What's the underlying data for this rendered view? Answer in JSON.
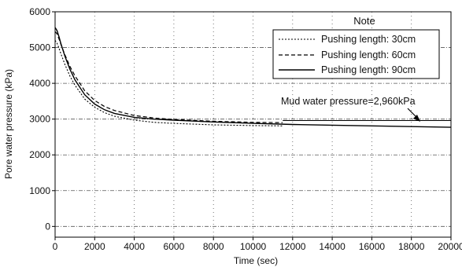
{
  "chart_data": {
    "type": "line",
    "xlabel": "Time (sec)",
    "ylabel": "Pore water pressure (kPa)",
    "xlim": [
      0,
      20000
    ],
    "ylim": [
      -300,
      6000
    ],
    "xticks": [
      0,
      2000,
      4000,
      6000,
      8000,
      10000,
      12000,
      14000,
      16000,
      18000,
      20000
    ],
    "yticks": [
      0,
      1000,
      2000,
      3000,
      4000,
      5000,
      6000
    ],
    "legend": {
      "title": "Note",
      "placement": "top-right"
    },
    "series": [
      {
        "name": "Pushing length: 30cm",
        "style": "dotted",
        "x": [
          0,
          100,
          200,
          300,
          500,
          750,
          1000,
          1500,
          2000,
          2500,
          3000,
          4000,
          5000,
          6000,
          8000,
          10000,
          11500
        ],
        "y": [
          5200,
          5120,
          4980,
          4820,
          4520,
          4200,
          3950,
          3560,
          3330,
          3180,
          3080,
          2970,
          2910,
          2880,
          2840,
          2820,
          2810
        ]
      },
      {
        "name": "Pushing length: 60cm",
        "style": "dashed",
        "x": [
          0,
          100,
          200,
          300,
          500,
          750,
          1000,
          1500,
          2000,
          2500,
          3000,
          4000,
          5000,
          6000,
          8000,
          10000,
          11500
        ],
        "y": [
          5450,
          5380,
          5240,
          5080,
          4790,
          4470,
          4210,
          3790,
          3520,
          3350,
          3240,
          3100,
          3030,
          2990,
          2940,
          2910,
          2900
        ]
      },
      {
        "name": "Pushing length: 90cm",
        "style": "solid",
        "x": [
          0,
          100,
          200,
          300,
          500,
          750,
          1000,
          1500,
          2000,
          2500,
          3000,
          4000,
          5000,
          6000,
          8000,
          10000,
          12000,
          14000,
          16000,
          18000,
          20000
        ],
        "y": [
          5560,
          5470,
          5300,
          5100,
          4750,
          4390,
          4100,
          3680,
          3420,
          3260,
          3160,
          3050,
          3000,
          2970,
          2920,
          2880,
          2850,
          2830,
          2810,
          2790,
          2770
        ]
      }
    ],
    "reference_line": {
      "label": "Mud water pressure=2,960kPa",
      "y": 2960,
      "x_start": 11500,
      "x_end": 20000
    }
  }
}
